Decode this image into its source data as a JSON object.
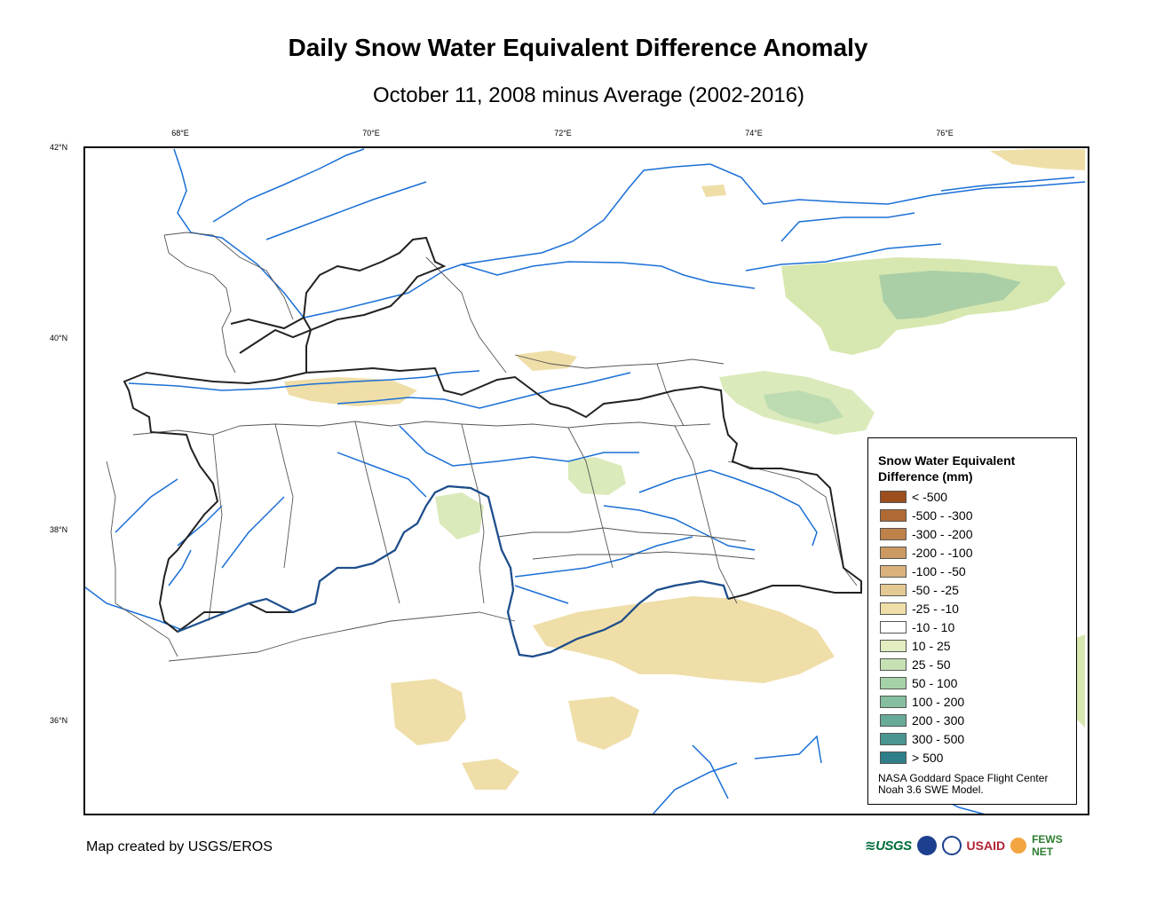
{
  "header": {
    "title": "Daily Snow Water Equivalent Difference Anomaly",
    "subtitle": "October 11, 2008 minus Average (2002-2016)"
  },
  "graticule": {
    "longitudes": [
      "68°E",
      "70°E",
      "72°E",
      "74°E",
      "76°E"
    ],
    "latitudes": [
      "42°N",
      "40°N",
      "38°N",
      "36°N"
    ]
  },
  "legend": {
    "title": "Snow Water Equivalent Difference (mm)",
    "items": [
      {
        "label": "< -500",
        "color": "#9c4f1d"
      },
      {
        "label": "-500 - -300",
        "color": "#b06a33"
      },
      {
        "label": "-300 - -200",
        "color": "#bf814a"
      },
      {
        "label": "-200 - -100",
        "color": "#cc9962"
      },
      {
        "label": "-100 - -50",
        "color": "#d9b27c"
      },
      {
        "label": "-50 - -25",
        "color": "#e5c992"
      },
      {
        "label": "-25 - -10",
        "color": "#efdea8"
      },
      {
        "label": "-10 - 10",
        "color": "#ffffff"
      },
      {
        "label": "10 - 25",
        "color": "#e2eebf"
      },
      {
        "label": "25 - 50",
        "color": "#c6e1b4"
      },
      {
        "label": "50 - 100",
        "color": "#a5d2a8"
      },
      {
        "label": "100 - 200",
        "color": "#86bfa0"
      },
      {
        "label": "200 - 300",
        "color": "#68aa98"
      },
      {
        "label": "300 - 500",
        "color": "#4a9592"
      },
      {
        "label": "> 500",
        "color": "#2e7f8a"
      }
    ],
    "credit_line1": "NASA Goddard Space Flight Center",
    "credit_line2": "Noah 3.6 SWE Model."
  },
  "footer": {
    "credit": "Map created by USGS/EROS"
  },
  "logos": {
    "usgs": "USGS",
    "usaid": "USAID",
    "fews": "FEWS NET"
  },
  "colors": {
    "river": "#1a6fd6",
    "boundary": "#222222",
    "admin": "#555555"
  }
}
